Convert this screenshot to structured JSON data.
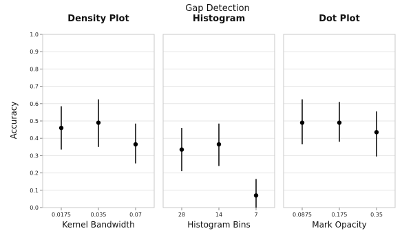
{
  "chart_data": {
    "type": "scatter",
    "title": "Gap Detection",
    "ylabel": "Accuracy",
    "ylim": [
      0,
      1
    ],
    "yticks": [
      "0.0",
      "0.1",
      "0.2",
      "0.3",
      "0.4",
      "0.5",
      "0.6",
      "0.7",
      "0.8",
      "0.9",
      "1.0"
    ],
    "grid": true,
    "panels": [
      {
        "title": "Density Plot",
        "xlabel": "Kernel Bandwidth",
        "categories": [
          "0.0175",
          "0.035",
          "0.07"
        ],
        "values": [
          0.46,
          0.49,
          0.365
        ],
        "ci_low": [
          0.335,
          0.35,
          0.255
        ],
        "ci_high": [
          0.585,
          0.625,
          0.485
        ]
      },
      {
        "title": "Histogram",
        "xlabel": "Histogram Bins",
        "categories": [
          "28",
          "14",
          "7"
        ],
        "values": [
          0.335,
          0.365,
          0.07
        ],
        "ci_low": [
          0.21,
          0.24,
          0.0
        ],
        "ci_high": [
          0.46,
          0.485,
          0.165
        ]
      },
      {
        "title": "Dot Plot",
        "xlabel": "Mark Opacity",
        "categories": [
          "0.0875",
          "0.175",
          "0.35"
        ],
        "values": [
          0.49,
          0.49,
          0.435
        ],
        "ci_low": [
          0.365,
          0.38,
          0.295
        ],
        "ci_high": [
          0.625,
          0.61,
          0.555
        ]
      }
    ]
  }
}
